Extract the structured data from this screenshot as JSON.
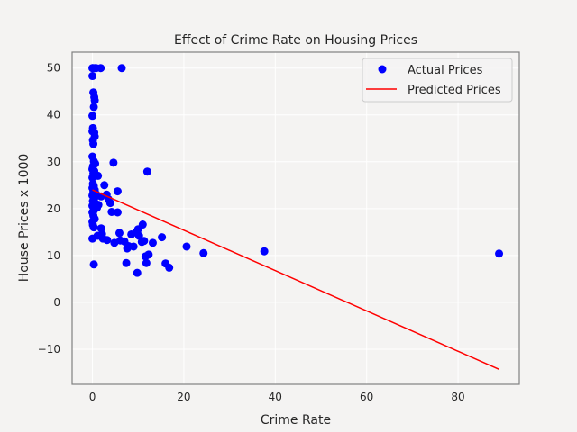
{
  "chart_data": {
    "type": "scatter",
    "title": "Effect of Crime Rate on Housing Prices",
    "xlabel": "Crime Rate",
    "ylabel": "House Prices x 1000",
    "xlim": [
      -4.45,
      93.4
    ],
    "ylim": [
      -17.5,
      53.4
    ],
    "xticks": [
      0,
      20,
      40,
      60,
      80
    ],
    "yticks": [
      -10,
      0,
      10,
      20,
      30,
      40,
      50
    ],
    "grid": true,
    "legend_position": "top-right",
    "colors": {
      "actual": "#0000ff",
      "predicted": "#ff0000",
      "background": "#f4f3f2",
      "grid": "#ffffff",
      "frame": "#808080"
    },
    "series": [
      {
        "name": "Actual Prices",
        "kind": "scatter",
        "points": [
          [
            0.0,
            50.0
          ],
          [
            0.1,
            50.0
          ],
          [
            0.5,
            50.0
          ],
          [
            0.8,
            50.0
          ],
          [
            1.8,
            50.0
          ],
          [
            6.4,
            50.0
          ],
          [
            0.0,
            48.3
          ],
          [
            0.2,
            44.8
          ],
          [
            0.4,
            43.8
          ],
          [
            0.5,
            43.1
          ],
          [
            0.3,
            41.7
          ],
          [
            0.0,
            39.8
          ],
          [
            0.1,
            37.2
          ],
          [
            0.0,
            36.5
          ],
          [
            0.4,
            36.2
          ],
          [
            0.5,
            35.4
          ],
          [
            0.1,
            34.6
          ],
          [
            0.2,
            33.8
          ],
          [
            0.0,
            31.1
          ],
          [
            0.3,
            30.1
          ],
          [
            0.6,
            29.6
          ],
          [
            0.1,
            29.0
          ],
          [
            0.0,
            28.4
          ],
          [
            0.4,
            28.0
          ],
          [
            0.2,
            27.5
          ],
          [
            0.0,
            26.6
          ],
          [
            1.2,
            27.0
          ],
          [
            0.1,
            25.3
          ],
          [
            0.3,
            24.8
          ],
          [
            0.0,
            24.4
          ],
          [
            0.5,
            24.0
          ],
          [
            0.2,
            23.6
          ],
          [
            0.8,
            23.1
          ],
          [
            0.0,
            22.8
          ],
          [
            0.4,
            22.2
          ],
          [
            0.1,
            21.6
          ],
          [
            0.6,
            21.1
          ],
          [
            0.0,
            20.6
          ],
          [
            1.0,
            20.2
          ],
          [
            0.3,
            19.6
          ],
          [
            0.0,
            19.2
          ],
          [
            0.2,
            18.5
          ],
          [
            0.5,
            17.8
          ],
          [
            0.0,
            17.2
          ],
          [
            0.1,
            16.5
          ],
          [
            0.3,
            16.0
          ],
          [
            0.0,
            13.6
          ],
          [
            0.3,
            8.1
          ],
          [
            1.3,
            20.8
          ],
          [
            1.9,
            22.6
          ],
          [
            2.6,
            25.0
          ],
          [
            3.1,
            23.0
          ],
          [
            3.5,
            22.0
          ],
          [
            3.9,
            21.2
          ],
          [
            4.2,
            19.3
          ],
          [
            4.6,
            29.8
          ],
          [
            5.5,
            23.7
          ],
          [
            5.5,
            19.2
          ],
          [
            1.1,
            14.2
          ],
          [
            1.9,
            15.8
          ],
          [
            2.1,
            14.6
          ],
          [
            2.3,
            13.6
          ],
          [
            3.2,
            13.3
          ],
          [
            4.8,
            12.7
          ],
          [
            5.9,
            14.8
          ],
          [
            6.1,
            13.2
          ],
          [
            7.0,
            13.0
          ],
          [
            7.4,
            8.4
          ],
          [
            7.6,
            11.5
          ],
          [
            7.9,
            12.0
          ],
          [
            8.5,
            14.5
          ],
          [
            9.0,
            11.9
          ],
          [
            9.5,
            14.9
          ],
          [
            9.8,
            6.3
          ],
          [
            10.0,
            15.6
          ],
          [
            10.2,
            14.2
          ],
          [
            10.8,
            12.9
          ],
          [
            11.0,
            16.6
          ],
          [
            11.3,
            13.1
          ],
          [
            11.6,
            9.8
          ],
          [
            11.8,
            8.4
          ],
          [
            12.0,
            27.9
          ],
          [
            12.3,
            10.2
          ],
          [
            13.2,
            12.7
          ],
          [
            15.2,
            13.9
          ],
          [
            16.0,
            8.3
          ],
          [
            16.8,
            7.4
          ],
          [
            20.6,
            11.9
          ],
          [
            24.3,
            10.5
          ],
          [
            37.6,
            10.9
          ],
          [
            88.97,
            10.4
          ]
        ]
      },
      {
        "name": "Predicted Prices",
        "kind": "line",
        "points": [
          [
            0.0,
            24.0
          ],
          [
            88.97,
            -14.3
          ]
        ]
      }
    ]
  }
}
